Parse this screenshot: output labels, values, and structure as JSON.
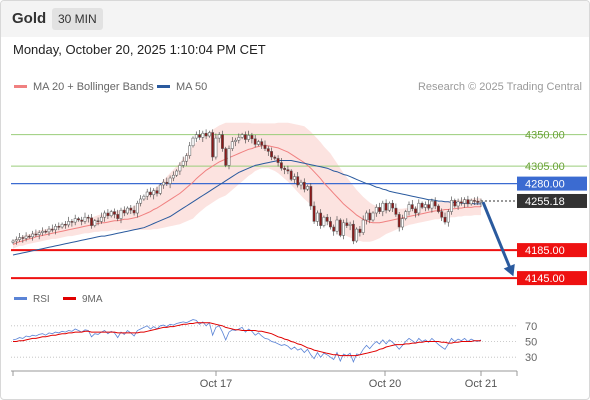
{
  "header": {
    "title": "Gold",
    "timeframe": "30 MIN"
  },
  "timestamp": "Monday, October 20, 2025 1:10:04 PM CET",
  "legend": {
    "ma20_label": "MA 20 + Bollinger Bands",
    "ma20_color": "#f08080",
    "ma50_label": "MA 50",
    "ma50_color": "#2a5a9e"
  },
  "copyright": "Research © 2025 Trading Central",
  "rsi_legend": {
    "rsi_label": "RSI",
    "rsi_color": "#5b84d6",
    "ma_label": "9MA",
    "ma_color": "#e00000"
  },
  "chart_data": [
    {
      "type": "candlestick",
      "title": "Gold",
      "timeframe": "30 MIN",
      "x_ticks": [
        "Oct 17",
        "Oct 20",
        "Oct 21"
      ],
      "ylim": [
        4128,
        4398
      ],
      "current_price": "4255.18",
      "levels": [
        {
          "label": "4350.00",
          "value": 4350,
          "style": "green-line"
        },
        {
          "label": "4305.00",
          "value": 4305,
          "style": "green-line"
        },
        {
          "label": "4280.00",
          "value": 4280,
          "style": "blue-line",
          "tag_bg": "#3b6bd1"
        },
        {
          "label": "4185.00",
          "value": 4185,
          "style": "red-line",
          "tag_bg": "#ee1111"
        },
        {
          "label": "4145.00",
          "value": 4145,
          "style": "red-line",
          "tag_bg": "#ee1111"
        }
      ],
      "forecast_arrow": {
        "from": 4255,
        "to": 4145,
        "color": "#2a5a9e"
      },
      "close": [
        4198,
        4200,
        4203,
        4202,
        4205,
        4204,
        4208,
        4207,
        4210,
        4212,
        4211,
        4215,
        4214,
        4219,
        4218,
        4222,
        4221,
        4226,
        4225,
        4230,
        4228,
        4226,
        4232,
        4231,
        4220,
        4227,
        4226,
        4232,
        4238,
        4234,
        4240,
        4236,
        4230,
        4242,
        4238,
        4245,
        4242,
        4238,
        4252,
        4258,
        4262,
        4268,
        4264,
        4270,
        4266,
        4278,
        4282,
        4280,
        4288,
        4292,
        4298,
        4306,
        4312,
        4320,
        4334,
        4345,
        4350,
        4346,
        4352,
        4348,
        4353,
        4318,
        4345,
        4350,
        4330,
        4306,
        4330,
        4340,
        4342,
        4346,
        4350,
        4343,
        4349,
        4344,
        4336,
        4340,
        4335,
        4330,
        4326,
        4318,
        4316,
        4310,
        4302,
        4300,
        4298,
        4286,
        4290,
        4278,
        4282,
        4272,
        4276,
        4248,
        4226,
        4238,
        4220,
        4232,
        4226,
        4218,
        4212,
        4228,
        4206,
        4224,
        4220,
        4222,
        4198,
        4215,
        4210,
        4228,
        4238,
        4228,
        4238,
        4246,
        4240,
        4252,
        4242,
        4252,
        4245,
        4236,
        4218,
        4230,
        4240,
        4250,
        4244,
        4238,
        4252,
        4246,
        4250,
        4245,
        4255,
        4248,
        4240,
        4232,
        4225,
        4240,
        4256,
        4248,
        4254,
        4252,
        4257,
        4251,
        4256,
        4255,
        4253,
        4255
      ],
      "ma20": [
        4193,
        4195,
        4197,
        4198,
        4200,
        4201,
        4202,
        4204,
        4205,
        4206,
        4207,
        4208,
        4209,
        4210,
        4211,
        4212,
        4213,
        4214,
        4215,
        4216,
        4217,
        4218,
        4219,
        4220,
        4221,
        4222,
        4223,
        4224,
        4224,
        4225,
        4226,
        4227,
        4227,
        4228,
        4229,
        4229,
        4230,
        4231,
        4232,
        4234,
        4236,
        4238,
        4240,
        4243,
        4245,
        4248,
        4251,
        4254,
        4257,
        4260,
        4263,
        4266,
        4270,
        4274,
        4278,
        4282,
        4287,
        4291,
        4295,
        4299,
        4302,
        4305,
        4308,
        4311,
        4313,
        4315,
        4317,
        4319,
        4321,
        4323,
        4325,
        4327,
        4329,
        4330,
        4332,
        4333,
        4334,
        4334,
        4334,
        4333,
        4332,
        4331,
        4329,
        4327,
        4325,
        4322,
        4319,
        4316,
        4313,
        4310,
        4306,
        4302,
        4297,
        4292,
        4287,
        4281,
        4276,
        4271,
        4266,
        4261,
        4256,
        4251,
        4247,
        4243,
        4239,
        4235,
        4232,
        4229,
        4227,
        4225,
        4224,
        4224,
        4224,
        4225,
        4226,
        4227,
        4228,
        4229,
        4230,
        4231,
        4232,
        4233,
        4234,
        4235,
        4236,
        4237,
        4238,
        4239,
        4240,
        4241,
        4241,
        4242,
        4243,
        4243,
        4244,
        4244,
        4245,
        4245,
        4246,
        4246,
        4246,
        4247,
        4247,
        4247
      ],
      "ma50": [
        4178,
        4179,
        4180,
        4181,
        4182,
        4183,
        4184,
        4185,
        4186,
        4187,
        4188,
        4189,
        4190,
        4191,
        4192,
        4193,
        4194,
        4195,
        4196,
        4197,
        4198,
        4199,
        4200,
        4201,
        4202,
        4203,
        4204,
        4205,
        4205,
        4206,
        4207,
        4208,
        4209,
        4210,
        4211,
        4212,
        4213,
        4214,
        4215,
        4216,
        4217,
        4219,
        4221,
        4223,
        4225,
        4227,
        4229,
        4231,
        4233,
        4236,
        4239,
        4242,
        4245,
        4248,
        4251,
        4254,
        4257,
        4260,
        4263,
        4266,
        4269,
        4272,
        4275,
        4278,
        4281,
        4284,
        4287,
        4290,
        4293,
        4296,
        4298,
        4300,
        4302,
        4304,
        4306,
        4307,
        4308,
        4309,
        4310,
        4311,
        4312,
        4313,
        4313,
        4313,
        4313,
        4313,
        4312,
        4311,
        4310,
        4309,
        4308,
        4307,
        4306,
        4305,
        4304,
        4303,
        4302,
        4300,
        4298,
        4297,
        4295,
        4293,
        4292,
        4290,
        4288,
        4286,
        4284,
        4282,
        4280,
        4279,
        4277,
        4275,
        4274,
        4272,
        4271,
        4269,
        4268,
        4267,
        4266,
        4265,
        4264,
        4263,
        4262,
        4261,
        4260,
        4259,
        4258,
        4257,
        4257,
        4256,
        4255,
        4255,
        4254,
        4254,
        4253,
        4253,
        4253,
        4252,
        4252,
        4252,
        4252,
        4251,
        4251,
        4251
      ],
      "bb_width": [
        6,
        6,
        6,
        7,
        7,
        7,
        7,
        8,
        8,
        8,
        8,
        8,
        8,
        9,
        9,
        9,
        9,
        9,
        10,
        10,
        10,
        10,
        10,
        11,
        11,
        11,
        12,
        12,
        12,
        13,
        13,
        13,
        14,
        14,
        15,
        15,
        16,
        17,
        18,
        20,
        22,
        24,
        26,
        28,
        30,
        32,
        34,
        36,
        38,
        40,
        42,
        44,
        46,
        48,
        50,
        52,
        52,
        52,
        52,
        52,
        52,
        52,
        52,
        52,
        52,
        52,
        50,
        48,
        46,
        44,
        42,
        40,
        38,
        36,
        34,
        33,
        32,
        32,
        32,
        33,
        34,
        36,
        38,
        40,
        42,
        44,
        46,
        48,
        50,
        52,
        52,
        52,
        52,
        52,
        52,
        52,
        52,
        52,
        50,
        48,
        46,
        44,
        42,
        40,
        38,
        36,
        34,
        32,
        30,
        28,
        26,
        24,
        22,
        20,
        18,
        17,
        16,
        15,
        14,
        13,
        13,
        12,
        12,
        12,
        12,
        12,
        12,
        12,
        12,
        12,
        12,
        12,
        12,
        12,
        12,
        12,
        12,
        12,
        12,
        12,
        12,
        12,
        12,
        12
      ]
    },
    {
      "type": "line",
      "title": "RSI",
      "ylim": [
        20,
        80
      ],
      "y_ticks": [
        70,
        50,
        30
      ],
      "series": [
        {
          "name": "RSI",
          "values": [
            52,
            53,
            55,
            54,
            57,
            56,
            58,
            57,
            59,
            60,
            58,
            61,
            60,
            62,
            61,
            63,
            62,
            64,
            63,
            66,
            64,
            62,
            65,
            64,
            56,
            60,
            59,
            62,
            64,
            60,
            63,
            61,
            55,
            62,
            59,
            64,
            61,
            57,
            64,
            66,
            68,
            70,
            66,
            69,
            66,
            70,
            71,
            69,
            72,
            71,
            73,
            74,
            75,
            74,
            76,
            78,
            77,
            72,
            75,
            70,
            74,
            58,
            68,
            70,
            62,
            52,
            62,
            65,
            64,
            66,
            68,
            62,
            66,
            63,
            58,
            61,
            57,
            54,
            53,
            50,
            49,
            47,
            45,
            46,
            44,
            40,
            43,
            39,
            41,
            36,
            40,
            33,
            28,
            36,
            30,
            35,
            33,
            30,
            27,
            36,
            25,
            34,
            32,
            35,
            24,
            34,
            33,
            40,
            45,
            41,
            46,
            50,
            47,
            52,
            47,
            52,
            49,
            45,
            40,
            45,
            50,
            54,
            51,
            48,
            54,
            50,
            52,
            49,
            54,
            50,
            46,
            43,
            40,
            47,
            54,
            50,
            53,
            51,
            54,
            50,
            53,
            51,
            50,
            52
          ]
        },
        {
          "name": "9MA",
          "values": [
            50,
            50,
            51,
            51,
            52,
            53,
            54,
            54,
            55,
            56,
            56,
            57,
            58,
            58,
            59,
            60,
            60,
            61,
            61,
            62,
            62,
            62,
            63,
            63,
            62,
            62,
            62,
            62,
            62,
            62,
            62,
            62,
            61,
            61,
            61,
            61,
            61,
            61,
            61,
            62,
            62,
            63,
            64,
            65,
            66,
            67,
            68,
            68,
            69,
            69,
            70,
            71,
            72,
            72,
            73,
            73,
            74,
            74,
            74,
            74,
            74,
            73,
            72,
            71,
            70,
            68,
            67,
            66,
            65,
            65,
            64,
            64,
            64,
            64,
            64,
            63,
            63,
            62,
            61,
            60,
            58,
            56,
            55,
            53,
            52,
            50,
            49,
            47,
            46,
            44,
            42,
            41,
            39,
            38,
            37,
            36,
            35,
            34,
            33,
            33,
            32,
            32,
            32,
            32,
            32,
            32,
            33,
            34,
            35,
            36,
            37,
            38,
            40,
            41,
            43,
            44,
            45,
            46,
            46,
            46,
            47,
            47,
            48,
            48,
            49,
            49,
            50,
            50,
            50,
            50,
            50,
            49,
            49,
            48,
            48,
            49,
            49,
            50,
            50,
            50,
            50,
            51,
            51,
            51
          ]
        }
      ]
    }
  ]
}
